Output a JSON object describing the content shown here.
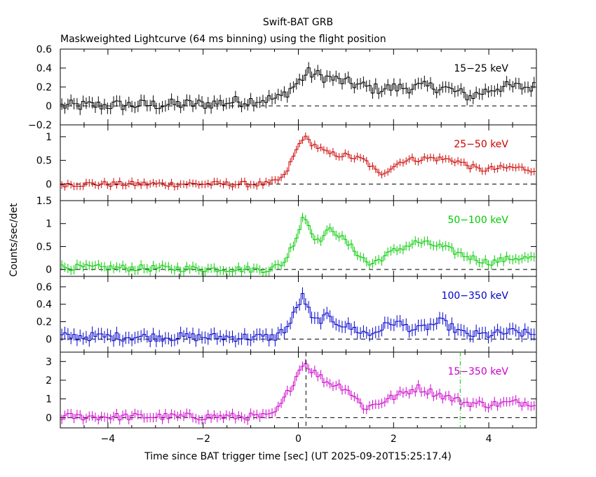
{
  "title": "Swift-BAT GRB",
  "subtitle": "Maskweighted Lightcurve (64 ms binning) using the flight position",
  "xlabel": "Time since BAT trigger time [sec] (UT 2025-09-20T15:25:17.4)",
  "ylabel": "Counts/sec/det",
  "chart_data": {
    "type": "line",
    "style": "step histogram with error bars, 64 ms bins",
    "x_range": [
      -5,
      5
    ],
    "x_ticks": [
      "−4",
      "−2",
      "0",
      "2",
      "4"
    ],
    "reference_lines": [
      {
        "axis": "y",
        "value": 0,
        "style": "dashed",
        "color": "#000000"
      },
      {
        "axis": "x",
        "value": 0.16,
        "style": "dashed",
        "color": "#000000",
        "panel": 4
      },
      {
        "axis": "x",
        "value": 3.4,
        "style": "dash-dot",
        "color": "#00cc00",
        "panel": 4
      }
    ],
    "panels": [
      {
        "label": "15−25 keV",
        "color": "#000000",
        "ylim": [
          -0.2,
          0.6
        ],
        "yticks": [
          "−0.2",
          "0",
          "0.2",
          "0.4",
          "0.6"
        ],
        "ytick_values": [
          -0.2,
          0,
          0.2,
          0.4,
          0.6
        ],
        "key_times": [
          -5,
          -2,
          -0.4,
          0,
          0.2,
          0.6,
          1.0,
          1.6,
          2.5,
          3.0,
          3.6,
          4.2,
          5
        ],
        "key_values": [
          0.0,
          0.02,
          0.08,
          0.25,
          0.35,
          0.3,
          0.25,
          0.18,
          0.2,
          0.2,
          0.1,
          0.2,
          0.2
        ],
        "noise": 0.06,
        "error": 0.06
      },
      {
        "label": "25−50 keV",
        "color": "#cc0000",
        "ylim": [
          -0.35,
          1.25
        ],
        "yticks": [
          "0",
          "0.5",
          "1"
        ],
        "ytick_values": [
          0,
          0.5,
          1
        ],
        "key_times": [
          -5,
          -0.6,
          -0.3,
          0,
          0.1,
          0.3,
          0.6,
          1.0,
          1.4,
          1.7,
          2.2,
          2.8,
          3.3,
          3.8,
          4.5,
          5
        ],
        "key_values": [
          0.0,
          0.0,
          0.15,
          0.8,
          1.0,
          0.85,
          0.65,
          0.6,
          0.5,
          0.2,
          0.5,
          0.55,
          0.5,
          0.3,
          0.35,
          0.3
        ],
        "noise": 0.06,
        "error": 0.08
      },
      {
        "label": "50−100 keV",
        "color": "#00cc00",
        "ylim": [
          -0.15,
          1.5
        ],
        "yticks": [
          "0",
          "0.5",
          "1",
          "1.5"
        ],
        "ytick_values": [
          0,
          0.5,
          1,
          1.5
        ],
        "key_times": [
          -5,
          -0.6,
          -0.3,
          0,
          0.1,
          0.4,
          0.7,
          0.9,
          1.2,
          1.5,
          2.0,
          2.5,
          3.0,
          3.5,
          4.0,
          4.5,
          5
        ],
        "key_values": [
          0.05,
          0.0,
          0.15,
          0.8,
          1.2,
          0.6,
          0.9,
          0.7,
          0.4,
          0.1,
          0.4,
          0.6,
          0.5,
          0.3,
          0.15,
          0.25,
          0.25
        ],
        "noise": 0.07,
        "error": 0.1
      },
      {
        "label": "100−350 keV",
        "color": "#0000cc",
        "ylim": [
          -0.15,
          0.72
        ],
        "yticks": [
          "0",
          "0.2",
          "0.4",
          "0.6"
        ],
        "ytick_values": [
          0,
          0.2,
          0.4,
          0.6
        ],
        "key_times": [
          -5,
          -0.5,
          -0.2,
          0.0,
          0.1,
          0.3,
          0.6,
          1.0,
          1.5,
          2.0,
          2.5,
          3.0,
          3.5,
          4.0,
          4.5,
          5
        ],
        "key_values": [
          0.03,
          0.02,
          0.15,
          0.4,
          0.5,
          0.2,
          0.25,
          0.15,
          0.05,
          0.2,
          0.1,
          0.2,
          0.05,
          0.05,
          0.08,
          0.05
        ],
        "noise": 0.05,
        "error": 0.07
      },
      {
        "label": "15−350 keV",
        "color": "#cc00cc",
        "ylim": [
          -0.55,
          3.5
        ],
        "yticks": [
          "0",
          "1",
          "2",
          "3"
        ],
        "ytick_values": [
          0,
          1,
          2,
          3
        ],
        "key_times": [
          -5,
          -0.6,
          -0.4,
          0,
          0.1,
          0.3,
          0.6,
          1.0,
          1.4,
          1.8,
          2.2,
          2.5,
          3.0,
          3.5,
          4.0,
          4.5,
          5
        ],
        "key_values": [
          0.05,
          0.05,
          0.5,
          2.4,
          3.0,
          2.5,
          1.9,
          1.6,
          0.5,
          0.9,
          1.3,
          1.6,
          1.2,
          0.8,
          0.7,
          0.8,
          0.8
        ],
        "noise": 0.2,
        "error": 0.25
      }
    ]
  }
}
